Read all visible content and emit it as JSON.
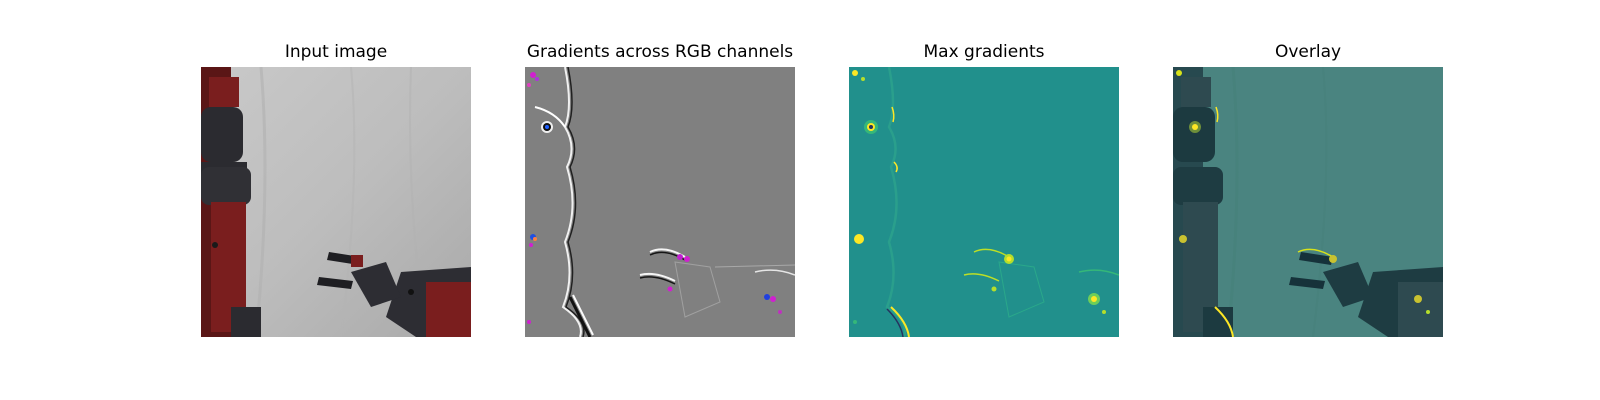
{
  "panels": [
    {
      "title": "Input image"
    },
    {
      "title": "Gradients across RGB channels"
    },
    {
      "title": "Max gradients"
    },
    {
      "title": "Overlay"
    }
  ],
  "colors": {
    "background": "#ffffff",
    "cloth": "#b8b8b8",
    "robot_red": "#6e1a1a",
    "robot_dark": "#2a2a2e",
    "gradient_gray": "#808080",
    "gradient_magenta": "#d020d0",
    "viridis_teal": "#21908c",
    "viridis_yellow": "#fde725",
    "overlay_teal": "#3e7f7c"
  }
}
